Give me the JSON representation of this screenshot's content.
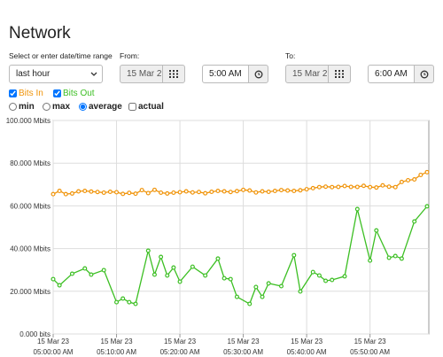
{
  "header": {
    "title": "Network"
  },
  "form": {
    "range_label": "Select or enter date/time range",
    "range_value": "last hour",
    "from_label": "From:",
    "from_date": "15 Mar 2",
    "from_time": "5:00 AM",
    "to_label": "To:",
    "to_date": "15 Mar 2",
    "to_time": "6:00 AM"
  },
  "toggles": [
    {
      "label": "Bits In",
      "checked": true,
      "color": "#f0940a"
    },
    {
      "label": "Bits Out",
      "checked": true,
      "color": "#3cbf23"
    }
  ],
  "stats": [
    {
      "label": "min",
      "checked": false
    },
    {
      "label": "max",
      "checked": false
    },
    {
      "label": "average",
      "checked": true
    }
  ],
  "actual": {
    "label": "actual",
    "checked": false
  },
  "chart_data": {
    "type": "line",
    "grid": true,
    "xlim": [
      "2023-03-15T05:00",
      "2023-03-15T05:59"
    ],
    "xticks": [
      {
        "value": "2023-03-15T05:00",
        "label": [
          "15 Mar 23",
          "05:00:00 AM"
        ]
      },
      {
        "value": "2023-03-15T05:10",
        "label": [
          "15 Mar 23",
          "05:10:00 AM"
        ]
      },
      {
        "value": "2023-03-15T05:20",
        "label": [
          "15 Mar 23",
          "05:20:00 AM"
        ]
      },
      {
        "value": "2023-03-15T05:30",
        "label": [
          "15 Mar 23",
          "05:30:00 AM"
        ]
      },
      {
        "value": "2023-03-15T05:40",
        "label": [
          "15 Mar 23",
          "05:40:00 AM"
        ]
      },
      {
        "value": "2023-03-15T05:50",
        "label": [
          "15 Mar 23",
          "05:50:00 AM"
        ]
      }
    ],
    "ylim": [
      0,
      100
    ],
    "yticks": [
      {
        "value": 0,
        "label": "0.000 bits"
      },
      {
        "value": 20,
        "label": "20.000 Mbits"
      },
      {
        "value": 40,
        "label": "40.000 Mbits"
      },
      {
        "value": 60,
        "label": "60.000 Mbits"
      },
      {
        "value": 80,
        "label": "80.000 Mbits"
      },
      {
        "value": 100,
        "label": "100.000 Mbits"
      }
    ],
    "series": [
      {
        "name": "Bits In",
        "color": "#f0940a",
        "x": [
          "2023-03-15T05:00",
          "2023-03-15T05:01",
          "2023-03-15T05:02",
          "2023-03-15T05:03",
          "2023-03-15T05:04",
          "2023-03-15T05:05",
          "2023-03-15T05:06",
          "2023-03-15T05:07",
          "2023-03-15T05:08",
          "2023-03-15T05:09",
          "2023-03-15T05:10",
          "2023-03-15T05:11",
          "2023-03-15T05:12",
          "2023-03-15T05:13",
          "2023-03-15T05:14",
          "2023-03-15T05:15",
          "2023-03-15T05:16",
          "2023-03-15T05:17",
          "2023-03-15T05:18",
          "2023-03-15T05:19",
          "2023-03-15T05:20",
          "2023-03-15T05:21",
          "2023-03-15T05:22",
          "2023-03-15T05:23",
          "2023-03-15T05:24",
          "2023-03-15T05:25",
          "2023-03-15T05:26",
          "2023-03-15T05:27",
          "2023-03-15T05:28",
          "2023-03-15T05:29",
          "2023-03-15T05:30",
          "2023-03-15T05:31",
          "2023-03-15T05:32",
          "2023-03-15T05:33",
          "2023-03-15T05:34",
          "2023-03-15T05:35",
          "2023-03-15T05:36",
          "2023-03-15T05:37",
          "2023-03-15T05:38",
          "2023-03-15T05:39",
          "2023-03-15T05:40",
          "2023-03-15T05:41",
          "2023-03-15T05:42",
          "2023-03-15T05:43",
          "2023-03-15T05:44",
          "2023-03-15T05:45",
          "2023-03-15T05:46",
          "2023-03-15T05:47",
          "2023-03-15T05:48",
          "2023-03-15T05:49",
          "2023-03-15T05:50",
          "2023-03-15T05:51",
          "2023-03-15T05:52",
          "2023-03-15T05:53",
          "2023-03-15T05:54",
          "2023-03-15T05:55",
          "2023-03-15T05:56",
          "2023-03-15T05:57",
          "2023-03-15T05:58",
          "2023-03-15T05:59"
        ],
        "values": [
          65.5,
          67,
          65.5,
          65.8,
          66.8,
          67,
          66.7,
          66.5,
          66.2,
          66.6,
          66.4,
          65.6,
          66.1,
          65.7,
          67.4,
          66,
          67.5,
          66.2,
          65.8,
          66.2,
          66.4,
          66.8,
          66.3,
          66.5,
          65.9,
          66.6,
          67,
          66.8,
          66.5,
          66.9,
          67.5,
          67.2,
          66.3,
          66.8,
          66.6,
          67,
          67.4,
          67.2,
          67,
          67.3,
          67.8,
          68.3,
          68.8,
          69,
          68.8,
          68.9,
          69.3,
          68.9,
          68.9,
          69.4,
          68.8,
          68.6,
          69.6,
          69,
          68.8,
          71.2,
          72,
          72.4,
          74.5,
          75.8
        ]
      },
      {
        "name": "Bits Out",
        "color": "#3cbf23",
        "x": [
          "2023-03-15T05:00",
          "2023-03-15T05:01",
          "2023-03-15T05:03",
          "2023-03-15T05:05",
          "2023-03-15T05:06",
          "2023-03-15T05:08",
          "2023-03-15T05:10",
          "2023-03-15T05:11",
          "2023-03-15T05:12",
          "2023-03-15T05:13",
          "2023-03-15T05:15",
          "2023-03-15T05:16",
          "2023-03-15T05:17",
          "2023-03-15T05:18",
          "2023-03-15T05:19",
          "2023-03-15T05:20",
          "2023-03-15T05:22",
          "2023-03-15T05:24",
          "2023-03-15T05:26",
          "2023-03-15T05:27",
          "2023-03-15T05:28",
          "2023-03-15T05:29",
          "2023-03-15T05:31",
          "2023-03-15T05:32",
          "2023-03-15T05:33",
          "2023-03-15T05:34",
          "2023-03-15T05:36",
          "2023-03-15T05:38",
          "2023-03-15T05:39",
          "2023-03-15T05:41",
          "2023-03-15T05:42",
          "2023-03-15T05:43",
          "2023-03-15T05:44",
          "2023-03-15T05:46",
          "2023-03-15T05:48",
          "2023-03-15T05:50",
          "2023-03-15T05:51",
          "2023-03-15T05:53",
          "2023-03-15T05:54",
          "2023-03-15T05:55",
          "2023-03-15T05:57",
          "2023-03-15T05:59"
        ],
        "values": [
          25.7,
          22.8,
          28.2,
          30.7,
          27.8,
          29.9,
          14.9,
          16.6,
          14.9,
          14.1,
          39,
          27.8,
          36.1,
          27.4,
          31.1,
          24.5,
          31.5,
          27.4,
          35.3,
          26.1,
          25.7,
          17.4,
          14.1,
          22,
          17.4,
          23.7,
          22.4,
          36.9,
          19.9,
          29,
          27.4,
          24.9,
          25.3,
          27,
          58.5,
          34.4,
          48.5,
          35.7,
          36.5,
          35.3,
          52.7,
          59.8
        ]
      }
    ]
  }
}
